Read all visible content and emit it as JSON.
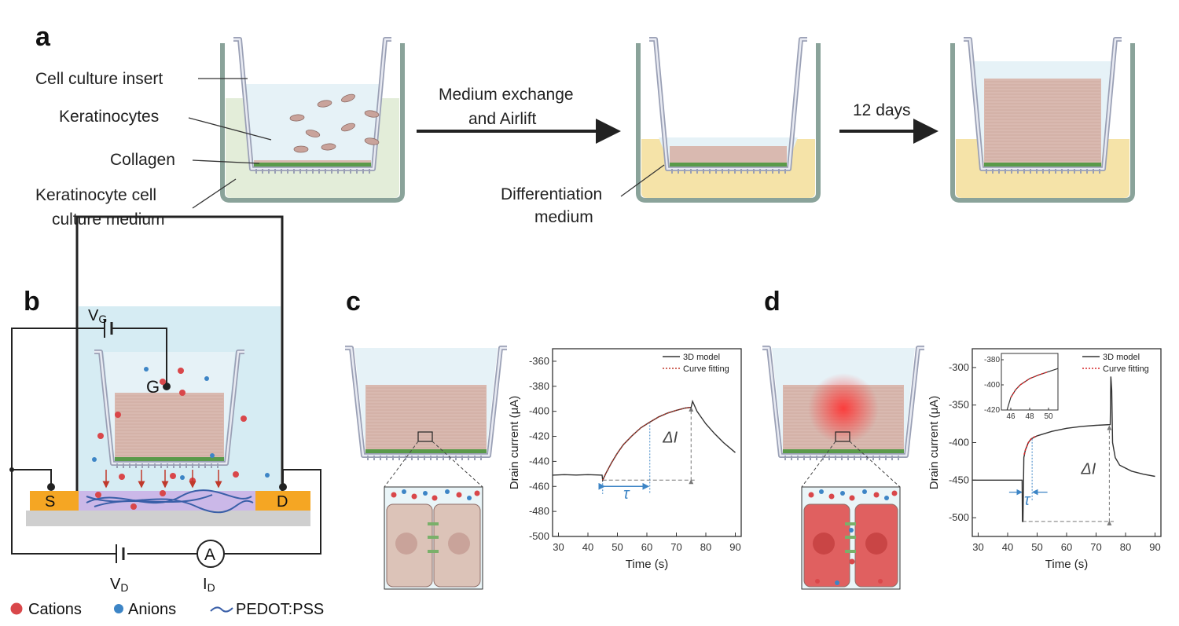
{
  "panels": {
    "a": "a",
    "b": "b",
    "c": "c",
    "d": "d"
  },
  "panel_a": {
    "labels": {
      "insert": "Cell culture insert",
      "keratinocytes": "Keratinocytes",
      "collagen": "Collagen",
      "medium_line1": "Keratinocyte cell",
      "medium_line2": "culture medium",
      "step1_line1": "Medium exchange",
      "step1_line2": "and Airlift",
      "diff_line1": "Differentiation",
      "diff_line2": "medium",
      "step2": "12 days"
    },
    "colors": {
      "keratinocyte_medium": "#e3edd9",
      "differentiation_medium": "#f5e3a8",
      "tissue": "#d9b9b0",
      "collagen": "#5a9a4a"
    }
  },
  "panel_b": {
    "vg": {
      "main": "V",
      "sub": "G"
    },
    "vd": {
      "main": "V",
      "sub": "D"
    },
    "id": {
      "main": "I",
      "sub": "D"
    },
    "gate": "G",
    "source": "S",
    "drain": "D",
    "ammeter": "A",
    "legend": {
      "cations": "Cations",
      "anions": "Anions",
      "pedot": "PEDOT:PSS"
    },
    "colors": {
      "cation": "#d9474a",
      "anion": "#3d85c6",
      "pedot": "#3a5fa8",
      "electrode": "#f5a623",
      "electrolyte": "#d6ecf3"
    }
  },
  "chart_data": [
    {
      "id": "c",
      "type": "line",
      "xlabel": "Time (s)",
      "ylabel": "Drain current (μA)",
      "xlim": [
        28,
        92
      ],
      "ylim": [
        -500,
        -350
      ],
      "xticks": [
        30,
        40,
        50,
        60,
        70,
        80,
        90
      ],
      "yticks": [
        -360,
        -380,
        -400,
        -420,
        -440,
        -460,
        -480,
        -500
      ],
      "legend_position": "top-right",
      "series": [
        {
          "name": "3D model",
          "color": "#333333",
          "style": "solid",
          "points": [
            [
              28,
              -451
            ],
            [
              32,
              -450.6
            ],
            [
              36,
              -450.9
            ],
            [
              40,
              -450.6
            ],
            [
              44.8,
              -451
            ],
            [
              45,
              -455
            ],
            [
              46,
              -450
            ],
            [
              48,
              -441.1
            ],
            [
              50,
              -433.4
            ],
            [
              52,
              -426.7
            ],
            [
              55,
              -419.4
            ],
            [
              58,
              -413.1
            ],
            [
              61,
              -408.6
            ],
            [
              64,
              -404.5
            ],
            [
              67,
              -401.4
            ],
            [
              70,
              -399.2
            ],
            [
              73,
              -397.4
            ],
            [
              75,
              -396.8
            ],
            [
              75.5,
              -392
            ],
            [
              77,
              -400
            ],
            [
              80,
              -410
            ],
            [
              83,
              -418
            ],
            [
              86,
              -425
            ],
            [
              90,
              -433
            ]
          ]
        },
        {
          "name": "Curve fitting",
          "color": "#c0392b",
          "style": "dotted",
          "points": [
            [
              45,
              -455
            ],
            [
              46,
              -450
            ],
            [
              48,
              -441.1
            ],
            [
              50,
              -433.4
            ],
            [
              52,
              -426.7
            ],
            [
              55,
              -419.4
            ],
            [
              58,
              -413.1
            ],
            [
              61,
              -408.6
            ],
            [
              64,
              -404.5
            ],
            [
              67,
              -401.4
            ],
            [
              70,
              -399.2
            ],
            [
              73,
              -397.4
            ],
            [
              75,
              -396.8
            ]
          ]
        }
      ],
      "annotations": {
        "tau": "τ",
        "delta_i": "ΔI",
        "tau_start": 45,
        "tau_end": 61,
        "baseline": -455,
        "peak": -397,
        "peak_time": 75
      }
    },
    {
      "id": "d",
      "type": "line",
      "xlabel": "Time (s)",
      "ylabel": "Drain current (μA)",
      "xlim": [
        28,
        92
      ],
      "ylim": [
        -525,
        -275
      ],
      "xticks": [
        30,
        40,
        50,
        60,
        70,
        80,
        90
      ],
      "yticks": [
        -300,
        -350,
        -400,
        -450,
        -500
      ],
      "legend_position": "top-right",
      "series": [
        {
          "name": "3D model",
          "color": "#333333",
          "style": "solid",
          "points": [
            [
              28,
              -450
            ],
            [
              44.9,
              -450
            ],
            [
              45,
              -505
            ],
            [
              45.2,
              -505
            ],
            [
              45.5,
              -420
            ],
            [
              46,
              -410
            ],
            [
              47,
              -400
            ],
            [
              48,
              -395
            ],
            [
              50,
              -391
            ],
            [
              55,
              -385
            ],
            [
              60,
              -381
            ],
            [
              65,
              -378.5
            ],
            [
              70,
              -377
            ],
            [
              74.8,
              -376
            ],
            [
              75,
              -312
            ],
            [
              75.3,
              -330
            ],
            [
              75.6,
              -400
            ],
            [
              76.5,
              -420
            ],
            [
              78,
              -430
            ],
            [
              82,
              -438
            ],
            [
              86,
              -442
            ],
            [
              90,
              -445
            ]
          ]
        },
        {
          "name": "Curve fitting",
          "color": "#d62728",
          "style": "dashed",
          "points": [
            [
              45.6,
              -416
            ],
            [
              46,
              -410
            ],
            [
              47,
              -400
            ],
            [
              48,
              -395
            ],
            [
              49,
              -392.5
            ],
            [
              50,
              -391
            ]
          ]
        }
      ],
      "annotations": {
        "tau": "τ",
        "delta_i": "ΔI",
        "tau_start": 45,
        "tau_end": 48.3,
        "baseline": -505,
        "peak": -378,
        "peak_time": 74.5
      },
      "inset": {
        "xlim": [
          45,
          51
        ],
        "ylim": [
          -420,
          -375
        ],
        "xticks": [
          46,
          48,
          50
        ],
        "yticks": [
          -380,
          -400,
          -420
        ],
        "points": [
          [
            45.6,
            -420
          ],
          [
            46,
            -410
          ],
          [
            46.5,
            -404
          ],
          [
            47,
            -400
          ],
          [
            48,
            -395
          ],
          [
            49,
            -392
          ],
          [
            50,
            -389.5
          ],
          [
            51,
            -387
          ]
        ]
      }
    }
  ]
}
